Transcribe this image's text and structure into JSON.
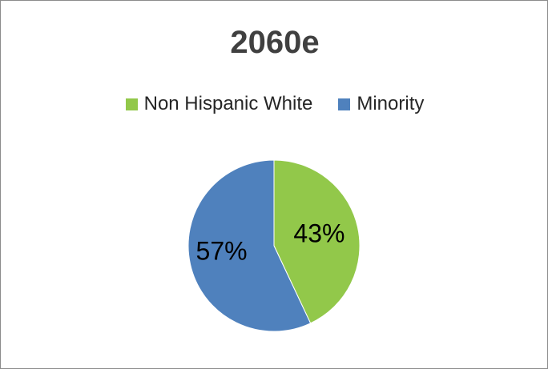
{
  "chart_data": {
    "type": "pie",
    "title": "2060e",
    "legend_position": "top",
    "slices": [
      {
        "label": "Non Hispanic White",
        "value": 43,
        "display": "43%",
        "color": "#92c84a"
      },
      {
        "label": "Minority",
        "value": 57,
        "display": "57%",
        "color": "#4f81bd"
      }
    ]
  }
}
